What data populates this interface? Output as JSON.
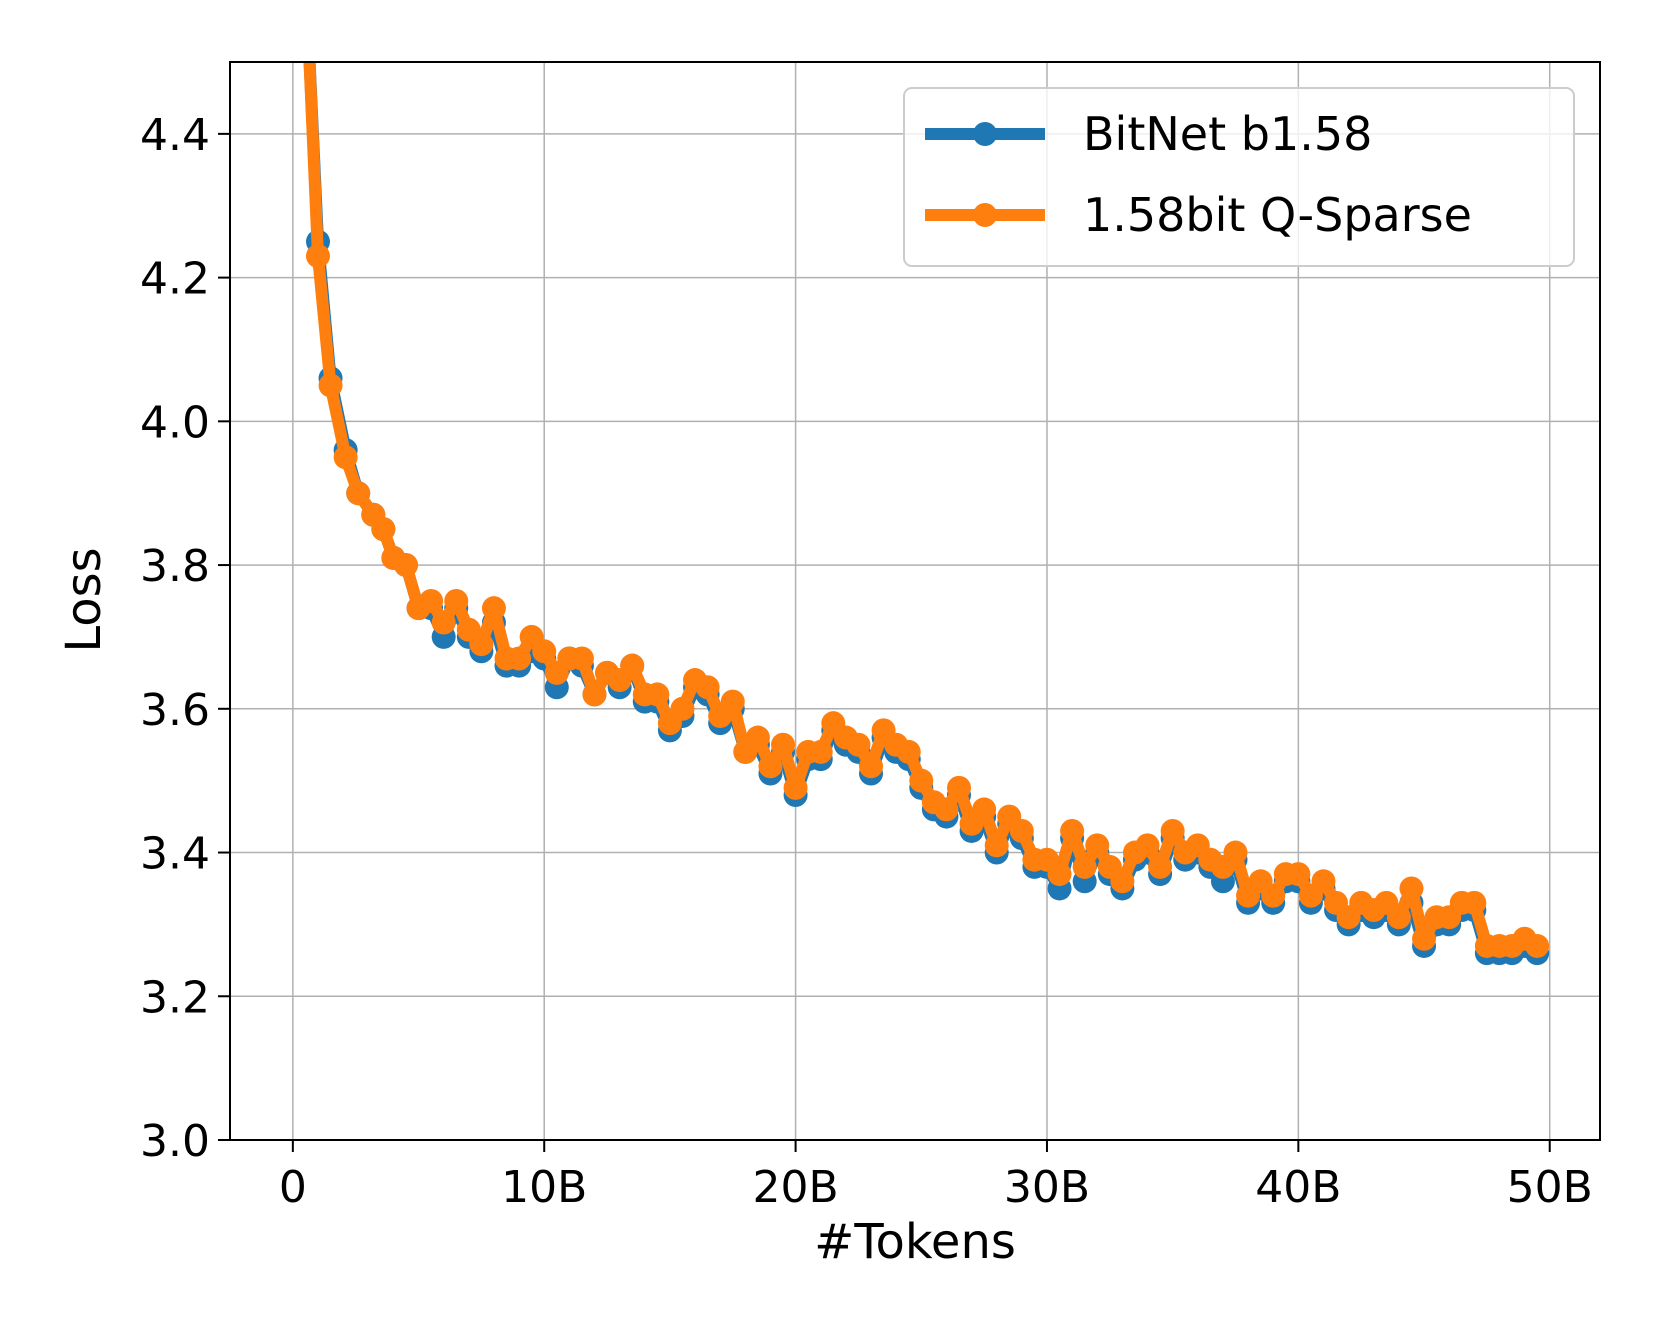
{
  "chart_data": {
    "type": "line",
    "xlabel": "#Tokens",
    "ylabel": "Loss",
    "xlim": [
      -2.5,
      52
    ],
    "ylim": [
      3.0,
      4.5
    ],
    "x_ticks": [
      0,
      10,
      20,
      30,
      40,
      50
    ],
    "x_tick_labels": [
      "0",
      "10B",
      "20B",
      "30B",
      "40B",
      "50B"
    ],
    "y_ticks": [
      3.0,
      3.2,
      3.4,
      3.6,
      3.8,
      4.0,
      4.2,
      4.4
    ],
    "y_tick_labels": [
      "3.0",
      "3.2",
      "3.4",
      "3.6",
      "3.8",
      "4.0",
      "4.2",
      "4.4"
    ],
    "grid": true,
    "legend_position": "top-right",
    "x": [
      0.6,
      1.0,
      1.5,
      2.1,
      2.6,
      3.2,
      3.6,
      4.0,
      4.5,
      5.0,
      5.5,
      6.0,
      6.5,
      7.0,
      7.5,
      8.0,
      8.5,
      9.0,
      9.5,
      10.0,
      10.5,
      11.0,
      11.5,
      12.0,
      12.5,
      13.0,
      13.5,
      14.0,
      14.5,
      15.0,
      15.5,
      16.0,
      16.5,
      17.0,
      17.5,
      18.0,
      18.5,
      19.0,
      19.5,
      20.0,
      20.5,
      21.0,
      21.5,
      22.0,
      22.5,
      23.0,
      23.5,
      24.0,
      24.5,
      25.0,
      25.5,
      26.0,
      26.5,
      27.0,
      27.5,
      28.0,
      28.5,
      29.0,
      29.5,
      30.0,
      30.5,
      31.0,
      31.5,
      32.0,
      32.5,
      33.0,
      33.5,
      34.0,
      34.5,
      35.0,
      35.5,
      36.0,
      36.5,
      37.0,
      37.5,
      38.0,
      38.5,
      39.0,
      39.5,
      40.0,
      40.5,
      41.0,
      41.5,
      42.0,
      42.5,
      43.0,
      43.5,
      44.0,
      44.5,
      45.0,
      45.5,
      46.0,
      46.5,
      47.0,
      47.5,
      48.0,
      48.5,
      49.0,
      49.5
    ],
    "series": [
      {
        "name": "BitNet b1.58",
        "color": "#1f77b4",
        "values": [
          4.55,
          4.25,
          4.06,
          3.96,
          3.9,
          3.87,
          3.85,
          3.81,
          3.8,
          3.74,
          3.74,
          3.7,
          3.74,
          3.7,
          3.68,
          3.72,
          3.66,
          3.66,
          3.68,
          3.67,
          3.63,
          3.67,
          3.66,
          3.62,
          3.65,
          3.63,
          3.66,
          3.61,
          3.61,
          3.57,
          3.59,
          3.63,
          3.62,
          3.58,
          3.6,
          3.54,
          3.55,
          3.51,
          3.54,
          3.48,
          3.53,
          3.53,
          3.57,
          3.55,
          3.54,
          3.51,
          3.56,
          3.54,
          3.53,
          3.49,
          3.46,
          3.45,
          3.48,
          3.43,
          3.45,
          3.4,
          3.44,
          3.42,
          3.38,
          3.38,
          3.35,
          3.42,
          3.36,
          3.4,
          3.37,
          3.35,
          3.39,
          3.4,
          3.37,
          3.42,
          3.39,
          3.4,
          3.38,
          3.36,
          3.39,
          3.33,
          3.35,
          3.33,
          3.36,
          3.36,
          3.33,
          3.35,
          3.32,
          3.3,
          3.32,
          3.31,
          3.32,
          3.3,
          3.33,
          3.27,
          3.3,
          3.3,
          3.32,
          3.32,
          3.26,
          3.26,
          3.26,
          3.27,
          3.26
        ]
      },
      {
        "name": "1.58bit Q-Sparse",
        "color": "#ff7f0e",
        "values": [
          4.55,
          4.23,
          4.05,
          3.95,
          3.9,
          3.87,
          3.85,
          3.81,
          3.8,
          3.74,
          3.75,
          3.72,
          3.75,
          3.71,
          3.69,
          3.74,
          3.67,
          3.67,
          3.7,
          3.68,
          3.65,
          3.67,
          3.67,
          3.62,
          3.65,
          3.64,
          3.66,
          3.62,
          3.62,
          3.58,
          3.6,
          3.64,
          3.63,
          3.59,
          3.61,
          3.54,
          3.56,
          3.52,
          3.55,
          3.49,
          3.54,
          3.54,
          3.58,
          3.56,
          3.55,
          3.52,
          3.57,
          3.55,
          3.54,
          3.5,
          3.47,
          3.46,
          3.49,
          3.44,
          3.46,
          3.41,
          3.45,
          3.43,
          3.39,
          3.39,
          3.37,
          3.43,
          3.38,
          3.41,
          3.38,
          3.36,
          3.4,
          3.41,
          3.38,
          3.43,
          3.4,
          3.41,
          3.39,
          3.38,
          3.4,
          3.34,
          3.36,
          3.34,
          3.37,
          3.37,
          3.34,
          3.36,
          3.33,
          3.31,
          3.33,
          3.32,
          3.33,
          3.31,
          3.35,
          3.28,
          3.31,
          3.31,
          3.33,
          3.33,
          3.27,
          3.27,
          3.27,
          3.28,
          3.27
        ]
      }
    ]
  }
}
